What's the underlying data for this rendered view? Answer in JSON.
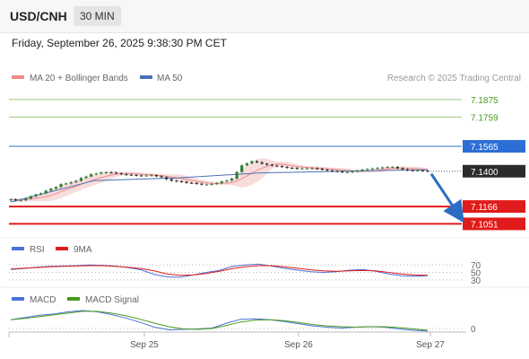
{
  "header": {
    "symbol": "USD/CNH",
    "timeframe": "30 MIN"
  },
  "timestamp": "Friday, September 26, 2025 9:38:30 PM CET",
  "colors": {
    "candle_up": "#2f7d3a",
    "candle_down": "#2b2b2b",
    "bollinger_band": "#f4c6c6",
    "ma20": "#f08a8a",
    "ma50": "#4a72b8",
    "resistance_line": "#9bc97d",
    "resistance_text": "#4a9a1e",
    "pivot_line": "#2c6ed6",
    "support_line": "#e01b1b",
    "last_price_bg": "#2b2b2b",
    "forecast_arrow": "#2b6cc4",
    "rsi": "#4a72d8",
    "rsi_ma": "#e01b1b",
    "macd": "#4a72d8",
    "macd_signal": "#4a9a1e"
  },
  "chart_data": [
    {
      "type": "candlestick",
      "title": "USD/CNH 30 MIN",
      "x_ticks": [
        "Sep 25",
        "Sep 26",
        "Sep 27"
      ],
      "ylim": [
        7.1,
        7.194
      ],
      "legend": {
        "position": "top-left",
        "entries": [
          "MA 20 + Bollinger Bands",
          "MA 50"
        ]
      },
      "watermark": "Research © 2025 Trading Central",
      "levels": [
        {
          "value": 7.1875,
          "label": "7.1875",
          "kind": "resistance"
        },
        {
          "value": 7.1759,
          "label": "7.1759",
          "kind": "resistance"
        },
        {
          "value": 7.1565,
          "label": "7.1565",
          "kind": "pivot"
        },
        {
          "value": 7.14,
          "label": "7.1400",
          "kind": "last"
        },
        {
          "value": 7.1166,
          "label": "7.1166",
          "kind": "support"
        },
        {
          "value": 7.1051,
          "label": "7.1051",
          "kind": "support"
        }
      ],
      "close_series": [
        7.1213,
        7.1207,
        7.1207,
        7.1219,
        7.1234,
        7.1246,
        7.1253,
        7.1271,
        7.1284,
        7.1295,
        7.1315,
        7.1319,
        7.1327,
        7.1336,
        7.1355,
        7.1365,
        7.138,
        7.1384,
        7.1391,
        7.1392,
        7.1391,
        7.1386,
        7.138,
        7.1377,
        7.1375,
        7.1372,
        7.137,
        7.1372,
        7.1374,
        7.1367,
        7.136,
        7.1347,
        7.1337,
        7.1333,
        7.133,
        7.1323,
        7.1322,
        7.1317,
        7.1312,
        7.1312,
        7.1316,
        7.1321,
        7.1332,
        7.1338,
        7.1351,
        7.1395,
        7.1439,
        7.1452,
        7.1466,
        7.1459,
        7.145,
        7.1443,
        7.1437,
        7.1433,
        7.1428,
        7.1422,
        7.1421,
        7.1418,
        7.1418,
        7.1419,
        7.142,
        7.1416,
        7.141,
        7.1405,
        7.1402,
        7.1398,
        7.1394,
        7.1394,
        7.1398,
        7.1403,
        7.141,
        7.1414,
        7.1418,
        7.1421,
        7.1425,
        7.1428,
        7.1428,
        7.1419,
        7.1412,
        7.1406,
        7.1405,
        7.1405,
        7.1403,
        7.14
      ],
      "ma50_series": [
        7.1196,
        7.1338,
        7.1355,
        7.1389,
        7.14,
        7.141
      ],
      "forecast": {
        "from": 7.14,
        "to": 7.1093,
        "direction": "down"
      }
    },
    {
      "type": "line",
      "title": "RSI",
      "legend": {
        "position": "top-left",
        "entries": [
          "RSI",
          "9MA"
        ]
      },
      "y_ticks": [
        70,
        50,
        30
      ],
      "series": [
        {
          "name": "RSI",
          "values": [
            58,
            60,
            64,
            66,
            67,
            68,
            70,
            69,
            67,
            63,
            57,
            45,
            38,
            37,
            43,
            50,
            55,
            66,
            70,
            72,
            67,
            61,
            56,
            52,
            50,
            52,
            56,
            58,
            53,
            46,
            41,
            40,
            41
          ]
        },
        {
          "name": "9MA",
          "values": [
            59,
            61,
            63,
            65,
            66,
            67,
            68,
            68,
            66,
            64,
            60,
            54,
            46,
            42,
            43,
            47,
            53,
            60,
            65,
            68,
            68,
            65,
            61,
            57,
            54,
            53,
            54,
            55,
            54,
            50,
            46,
            43,
            42
          ]
        }
      ]
    },
    {
      "type": "line",
      "title": "MACD",
      "legend": {
        "position": "top-left",
        "entries": [
          "MACD",
          "MACD Signal"
        ]
      },
      "y_ticks": [
        0
      ],
      "series": [
        {
          "name": "MACD",
          "values": [
            20,
            25,
            30,
            33,
            38,
            41,
            38,
            32,
            24,
            14,
            3,
            -3,
            -2,
            -1,
            1,
            12,
            21,
            22,
            20,
            16,
            11,
            6,
            3,
            1,
            3,
            4,
            3,
            -1,
            -4,
            -6
          ]
        },
        {
          "name": "MACD Signal",
          "values": [
            20,
            23,
            27,
            31,
            35,
            39,
            39,
            35,
            29,
            21,
            12,
            4,
            -1,
            -2,
            0,
            7,
            15,
            19,
            20,
            18,
            14,
            9,
            6,
            4,
            3,
            4,
            4,
            2,
            -1,
            -4
          ]
        }
      ]
    }
  ]
}
